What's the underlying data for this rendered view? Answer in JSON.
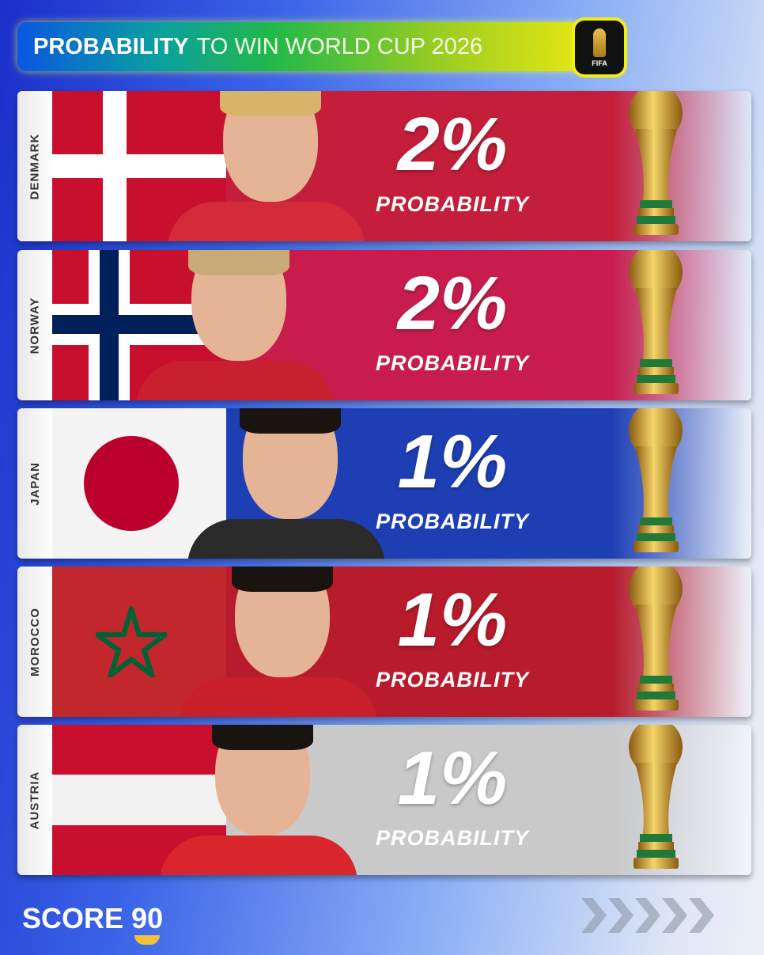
{
  "header": {
    "title_bold": "PROBABILITY",
    "title_light": "TO WIN WORLD CUP 2026",
    "badge": "FIFA"
  },
  "rows": [
    {
      "country": "DENMARK",
      "percent": "2%",
      "label": "PROBABILITY",
      "bg": "#c41e3a"
    },
    {
      "country": "NORWAY",
      "percent": "2%",
      "label": "PROBABILITY",
      "bg": "#c81d4c"
    },
    {
      "country": "JAPAN",
      "percent": "1%",
      "label": "PROBABILITY",
      "bg": "#1e3fb4"
    },
    {
      "country": "MOROCCO",
      "percent": "1%",
      "label": "PROBABILITY",
      "bg": "#b81b2b"
    },
    {
      "country": "AUSTRIA",
      "percent": "1%",
      "label": "PROBABILITY",
      "bg": "#c9c9c9"
    }
  ],
  "footer": {
    "brand": "SCORE",
    "brand_number": "90"
  }
}
